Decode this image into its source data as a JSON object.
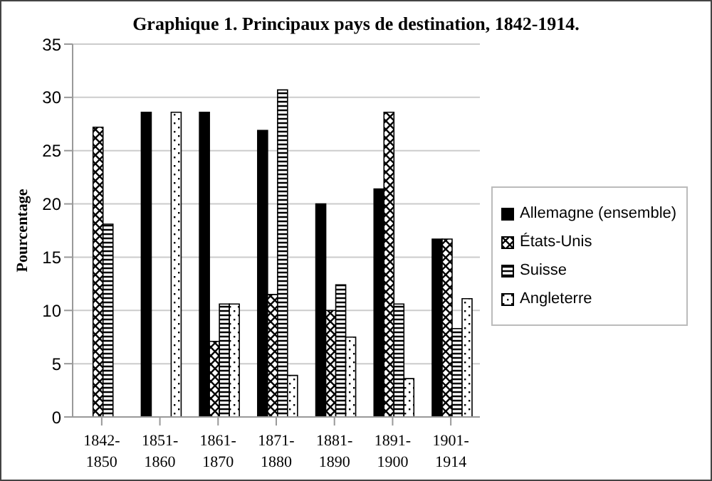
{
  "chart_data": {
    "type": "bar",
    "title": "Graphique 1. Principaux pays de destination, 1842-1914.",
    "ylabel": "Pourcentage",
    "categories": [
      "1842-1850",
      "1851-1860",
      "1861-1870",
      "1871-1880",
      "1881-1890",
      "1891-1900",
      "1901-1914"
    ],
    "series": [
      {
        "name": "Allemagne (ensemble)",
        "color": "#000000",
        "values": [
          0,
          28.6,
          28.6,
          26.9,
          20.0,
          21.4,
          16.7
        ]
      },
      {
        "name": "États-Unis",
        "color": "#000000",
        "values": [
          27.2,
          0,
          7.1,
          11.5,
          10.0,
          28.6,
          16.7
        ]
      },
      {
        "name": "Suisse",
        "color": "#000000",
        "values": [
          18.1,
          0,
          10.6,
          30.7,
          12.4,
          10.6,
          8.3
        ]
      },
      {
        "name": "Angleterre",
        "color": "#000000",
        "values": [
          0,
          28.6,
          10.6,
          3.9,
          7.5,
          3.6,
          11.1
        ]
      }
    ],
    "ylim": [
      0,
      35
    ],
    "yticks": [
      0,
      5,
      10,
      15,
      20,
      25,
      30,
      35
    ],
    "grid": "y",
    "legend": "right"
  }
}
